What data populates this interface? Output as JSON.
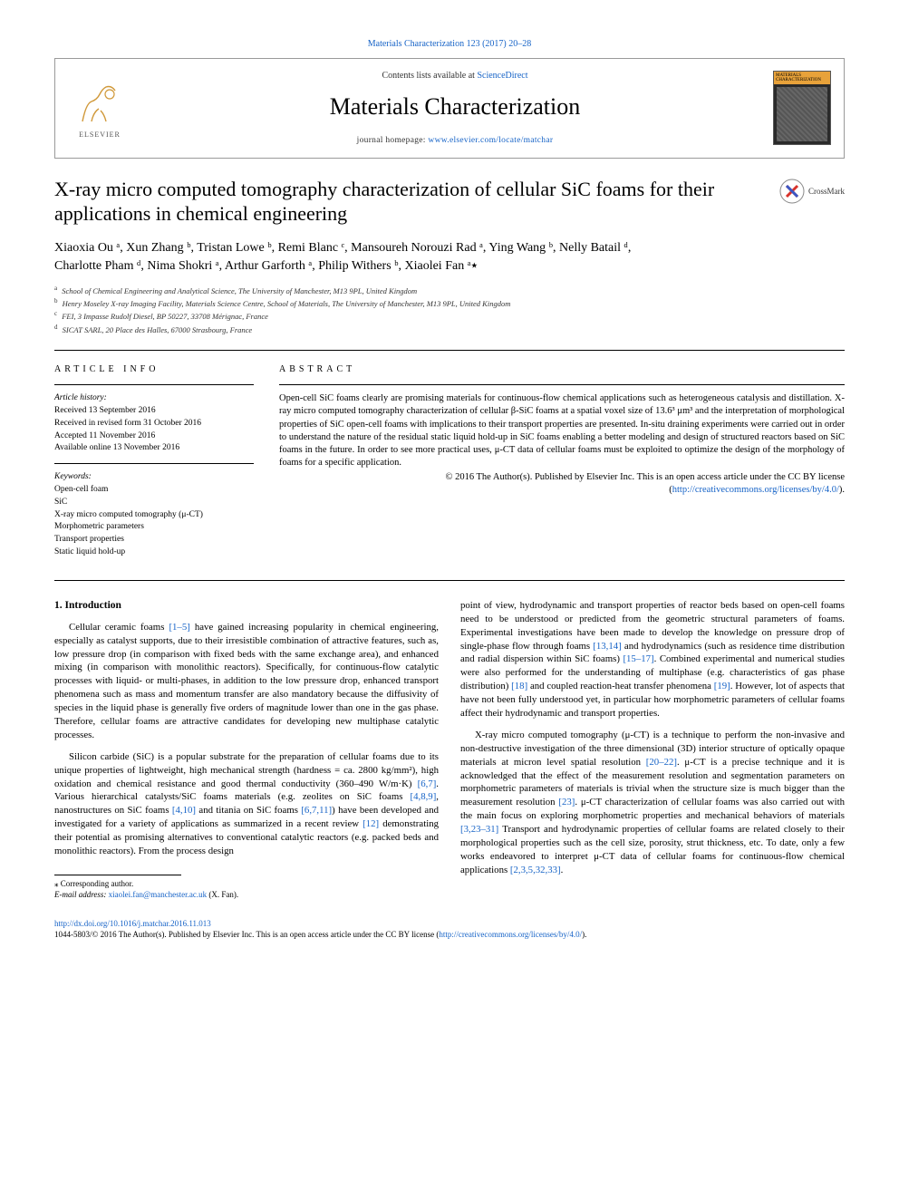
{
  "colors": {
    "link": "#1663c7",
    "text": "#000000",
    "bg": "#ffffff",
    "elsevier_orange": "#f3a23a",
    "border": "#999999"
  },
  "typography": {
    "journal_title_size": 26,
    "paper_title_size": 22,
    "body_size": 10.8,
    "abstract_size": 10.5,
    "info_size": 9.5
  },
  "top_link": "Materials Characterization 123 (2017) 20–28",
  "header": {
    "publisher_label": "ELSEVIER",
    "contents_label": "Contents lists available at ",
    "contents_link": "ScienceDirect",
    "journal_title": "Materials Characterization",
    "homepage_prefix": "journal homepage: ",
    "homepage_url": "www.elsevier.com/locate/matchar",
    "cover_label": "MATERIALS CHARACTERIZATION"
  },
  "crossmark_label": "CrossMark",
  "paper_title": "X-ray micro computed tomography characterization of cellular SiC foams for their applications in chemical engineering",
  "authors_line_1": "Xiaoxia Ou ᵃ, Xun Zhang ᵇ, Tristan Lowe ᵇ, Remi Blanc ᶜ, Mansoureh Norouzi Rad ᵃ, Ying Wang ᵇ, Nelly Batail ᵈ,",
  "authors_line_2": "Charlotte Pham ᵈ, Nima Shokri ᵃ, Arthur Garforth ᵃ, Philip Withers ᵇ, Xiaolei Fan ᵃ٭",
  "affiliations": [
    {
      "sup": "a",
      "text": "School of Chemical Engineering and Analytical Science, The University of Manchester, M13 9PL, United Kingdom"
    },
    {
      "sup": "b",
      "text": "Henry Moseley X-ray Imaging Facility, Materials Science Centre, School of Materials, The University of Manchester, M13 9PL, United Kingdom"
    },
    {
      "sup": "c",
      "text": "FEI, 3 Impasse Rudolf Diesel, BP 50227, 33708 Mérignac, France"
    },
    {
      "sup": "d",
      "text": "SICAT SARL, 20 Place des Halles, 67000 Strasbourg, France"
    }
  ],
  "article_info": {
    "heading": "ARTICLE INFO",
    "history_label": "Article history:",
    "history": [
      "Received 13 September 2016",
      "Received in revised form 31 October 2016",
      "Accepted 11 November 2016",
      "Available online 13 November 2016"
    ],
    "keywords_label": "Keywords:",
    "keywords": [
      "Open-cell foam",
      "SiC",
      "X-ray micro computed tomography (μ-CT)",
      "Morphometric parameters",
      "Transport properties",
      "Static liquid hold-up"
    ]
  },
  "abstract": {
    "heading": "ABSTRACT",
    "text": "Open-cell SiC foams clearly are promising materials for continuous-flow chemical applications such as heterogeneous catalysis and distillation. X-ray micro computed tomography characterization of cellular β-SiC foams at a spatial voxel size of 13.6³ μm³ and the interpretation of morphological properties of SiC open-cell foams with implications to their transport properties are presented. In-situ draining experiments were carried out in order to understand the nature of the residual static liquid hold-up in SiC foams enabling a better modeling and design of structured reactors based on SiC foams in the future. In order to see more practical uses, μ-CT data of cellular foams must be exploited to optimize the design of the morphology of foams for a specific application.",
    "copyright": "© 2016 The Author(s). Published by Elsevier Inc. This is an open access article under the CC BY license (",
    "cc_url": "http://creativecommons.org/licenses/by/4.0/",
    "copyright_close": ")."
  },
  "intro": {
    "heading": "1. Introduction",
    "p1_a": "Cellular ceramic foams ",
    "p1_cite1": "[1–5]",
    "p1_b": " have gained increasing popularity in chemical engineering, especially as catalyst supports, due to their irresistible combination of attractive features, such as, low pressure drop (in comparison with fixed beds with the same exchange area), and enhanced mixing (in comparison with monolithic reactors). Specifically, for continuous-flow catalytic processes with liquid- or multi-phases, in addition to the low pressure drop, enhanced transport phenomena such as mass and momentum transfer are also mandatory because the diffusivity of species in the liquid phase is generally five orders of magnitude lower than one in the gas phase. Therefore, cellular foams are attractive candidates for developing new multiphase catalytic processes.",
    "p2_a": "Silicon carbide (SiC) is a popular substrate for the preparation of cellular foams due to its unique properties of lightweight, high mechanical strength (hardness = ca. 2800 kg/mm²), high oxidation and chemical resistance and good thermal conductivity (360–490 W/m·K) ",
    "p2_cite1": "[6,7]",
    "p2_b": ". Various hierarchical catalysts/SiC foams materials (e.g. zeolites on SiC foams ",
    "p2_cite2": "[4,8,9]",
    "p2_c": ", nanostructures on SiC foams ",
    "p2_cite3": "[4,10]",
    "p2_d": " and titania on SiC foams ",
    "p2_cite4": "[6,7,11]",
    "p2_e": ") have been developed and investigated for a variety of applications as summarized in a recent review ",
    "p2_cite5": "[12]",
    "p2_f": " demonstrating their potential as promising alternatives to conventional catalytic reactors (e.g. packed beds and monolithic reactors). From the process design",
    "p3_a": "point of view, hydrodynamic and transport properties of reactor beds based on open-cell foams need to be understood or predicted from the geometric structural parameters of foams. Experimental investigations have been made to develop the knowledge on pressure drop of single-phase flow through foams ",
    "p3_cite1": "[13,14]",
    "p3_b": " and hydrodynamics (such as residence time distribution and radial dispersion within SiC foams) ",
    "p3_cite2": "[15–17]",
    "p3_c": ". Combined experimental and numerical studies were also performed for the understanding of multiphase (e.g. characteristics of gas phase distribution) ",
    "p3_cite3": "[18]",
    "p3_d": " and coupled reaction-heat transfer phenomena ",
    "p3_cite4": "[19]",
    "p3_e": ". However, lot of aspects that have not been fully understood yet, in particular how morphometric parameters of cellular foams affect their hydrodynamic and transport properties.",
    "p4_a": "X-ray micro computed tomography (μ-CT) is a technique to perform the non-invasive and non-destructive investigation of the three dimensional (3D) interior structure of optically opaque materials at micron level spatial resolution ",
    "p4_cite1": "[20–22]",
    "p4_b": ". μ-CT is a precise technique and it is acknowledged that the effect of the measurement resolution and segmentation parameters on morphometric parameters of materials is trivial when the structure size is much bigger than the measurement resolution ",
    "p4_cite2": "[23]",
    "p4_c": ". μ-CT characterization of cellular foams was also carried out with the main focus on exploring morphometric properties and mechanical behaviors of materials ",
    "p4_cite3": "[3,23–31]",
    "p4_d": " Transport and hydrodynamic properties of cellular foams are related closely to their morphological properties such as the cell size, porosity, strut thickness, etc. To date, only a few works endeavored to interpret μ-CT data of cellular foams for continuous-flow chemical applications ",
    "p4_cite4": "[2,3,5,32,33]",
    "p4_e": "."
  },
  "footnote": {
    "corr_label": "⁎ Corresponding author.",
    "email_label": "E-mail address: ",
    "email": "xiaolei.fan@manchester.ac.uk",
    "email_suffix": " (X. Fan)."
  },
  "footer": {
    "doi": "http://dx.doi.org/10.1016/j.matchar.2016.11.013",
    "issn_line_a": "1044-5803/© 2016 The Author(s). Published by Elsevier Inc. This is an open access article under the CC BY license (",
    "cc_url": "http://creativecommons.org/licenses/by/4.0/",
    "issn_line_b": ")."
  }
}
